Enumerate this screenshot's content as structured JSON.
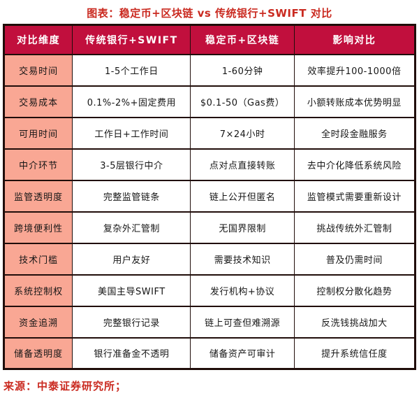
{
  "title": "图表：稳定币+区块链 vs 传统银行+SWIFT 对比",
  "source": "来源：中泰证券研究所；",
  "colors": {
    "header_bg": "#c10f3d",
    "dimension_bg": "#f9a794",
    "border": "#200d0a",
    "title_red": "#ca2a20",
    "header_text": "#ffffff",
    "body_text": "#161616"
  },
  "chart_data": {
    "type": "table",
    "title": "图表：稳定币+区块链 vs 传统银行+SWIFT 对比",
    "source": "来源：中泰证券研究所；",
    "columns": [
      "对比维度",
      "传统银行+SWIFT",
      "稳定币+区块链",
      "影响对比"
    ],
    "rows": [
      [
        "交易时间",
        "1-5个工作日",
        "1-60分钟",
        "效率提升100-1000倍"
      ],
      [
        "交易成本",
        "0.1%-2%+固定费用",
        "$0.1-50（Gas费）",
        "小额转账成本优势明显"
      ],
      [
        "可用时间",
        "工作日+工作时间",
        "7×24小时",
        "全时段金融服务"
      ],
      [
        "中介环节",
        "3-5层银行中介",
        "点对点直接转账",
        "去中介化降低系统风险"
      ],
      [
        "监管透明度",
        "完整监管链条",
        "链上公开但匿名",
        "监管模式需要重新设计"
      ],
      [
        "跨境便利性",
        "复杂外汇管制",
        "无国界限制",
        "挑战传统外汇管制"
      ],
      [
        "技术门槛",
        "用户友好",
        "需要技术知识",
        "普及仍需时间"
      ],
      [
        "系统控制权",
        "美国主导SWIFT",
        "发行机构+协议",
        "控制权分散化趋势"
      ],
      [
        "资金追溯",
        "完整银行记录",
        "链上可查但难溯源",
        "反洗钱挑战加大"
      ],
      [
        "储备透明度",
        "银行准备金不透明",
        "储备资产可审计",
        "提升系统信任度"
      ]
    ]
  }
}
